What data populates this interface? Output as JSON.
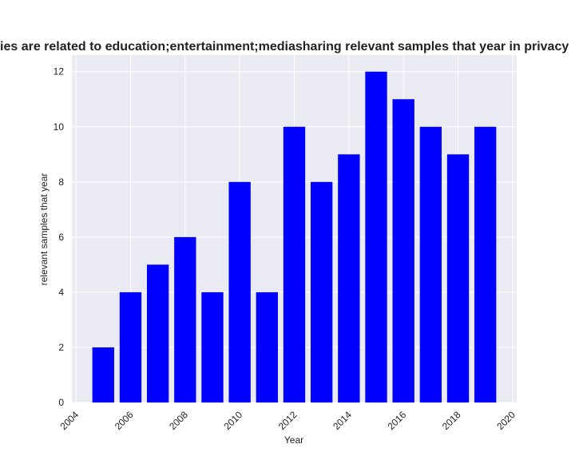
{
  "chart_data": {
    "type": "bar",
    "title": "Number of studies are related to education;entertainment;mediasharing relevant samples that year in privacy",
    "title_visible": "ies are related to education;entertainment;mediasharing relevant samples that year in privacy",
    "xlabel": "Year",
    "ylabel": "relevant samples that year",
    "x": [
      2005,
      2006,
      2007,
      2008,
      2009,
      2010,
      2011,
      2012,
      2013,
      2014,
      2015,
      2016,
      2017,
      2018,
      2019
    ],
    "values": [
      2,
      4,
      5,
      6,
      4,
      8,
      4,
      10,
      8,
      9,
      12,
      11,
      10,
      9,
      10
    ],
    "xlim": [
      2003.85,
      2020.15
    ],
    "ylim": [
      0,
      12.6
    ],
    "xticks": [
      2004,
      2006,
      2008,
      2010,
      2012,
      2014,
      2016,
      2018,
      2020
    ],
    "yticks": [
      0,
      2,
      4,
      6,
      8,
      10,
      12
    ],
    "bar_color": "#0000ff",
    "background_color": "#eaeaf2",
    "grid": true
  }
}
